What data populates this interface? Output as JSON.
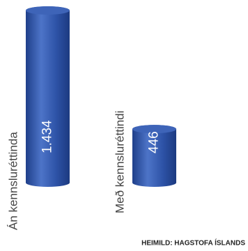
{
  "chart_data": {
    "type": "bar",
    "categories": [
      "Án kennsluréttinda",
      "Með kennsluréttindi"
    ],
    "values": [
      1434,
      446
    ],
    "value_labels": [
      "1.434",
      "446"
    ],
    "color": "#2f55a8",
    "source": "HEIMILD: HAGSTOFA ÍSLANDS"
  }
}
